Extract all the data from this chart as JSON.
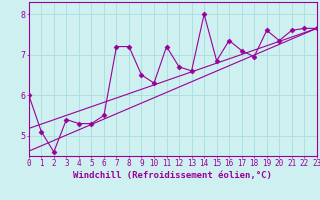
{
  "title": "",
  "xlabel": "Windchill (Refroidissement éolien,°C)",
  "ylabel": "",
  "background_color": "#cef0f0",
  "plot_bg_color": "#cef0f0",
  "line_color": "#990099",
  "grid_color": "#aadddd",
  "x_values": [
    0,
    1,
    2,
    3,
    4,
    5,
    6,
    7,
    8,
    9,
    10,
    11,
    12,
    13,
    14,
    15,
    16,
    17,
    18,
    19,
    20,
    21,
    22,
    23
  ],
  "y_values": [
    6.0,
    5.1,
    4.6,
    5.4,
    5.3,
    5.3,
    5.5,
    7.2,
    7.2,
    6.5,
    6.3,
    7.2,
    6.7,
    6.6,
    8.0,
    6.85,
    7.35,
    7.1,
    6.95,
    7.6,
    7.35,
    7.6,
    7.65,
    7.65
  ],
  "reg_line1_x": [
    0,
    23
  ],
  "reg_line1_y": [
    4.62,
    7.65
  ],
  "reg_line2_x": [
    0,
    23
  ],
  "reg_line2_y": [
    5.18,
    7.65
  ],
  "xlim": [
    0,
    23
  ],
  "ylim": [
    4.5,
    8.3
  ],
  "yticks": [
    5,
    6,
    7,
    8
  ],
  "xticks": [
    0,
    1,
    2,
    3,
    4,
    5,
    6,
    7,
    8,
    9,
    10,
    11,
    12,
    13,
    14,
    15,
    16,
    17,
    18,
    19,
    20,
    21,
    22,
    23
  ],
  "xtick_labels": [
    "0",
    "1",
    "2",
    "3",
    "4",
    "5",
    "6",
    "7",
    "8",
    "9",
    "10",
    "11",
    "12",
    "13",
    "14",
    "15",
    "16",
    "17",
    "18",
    "19",
    "20",
    "21",
    "22",
    "23"
  ],
  "marker": "D",
  "marker_size": 2.5,
  "line_width": 0.8,
  "font_size": 5.5,
  "xlabel_fontsize": 6.5
}
